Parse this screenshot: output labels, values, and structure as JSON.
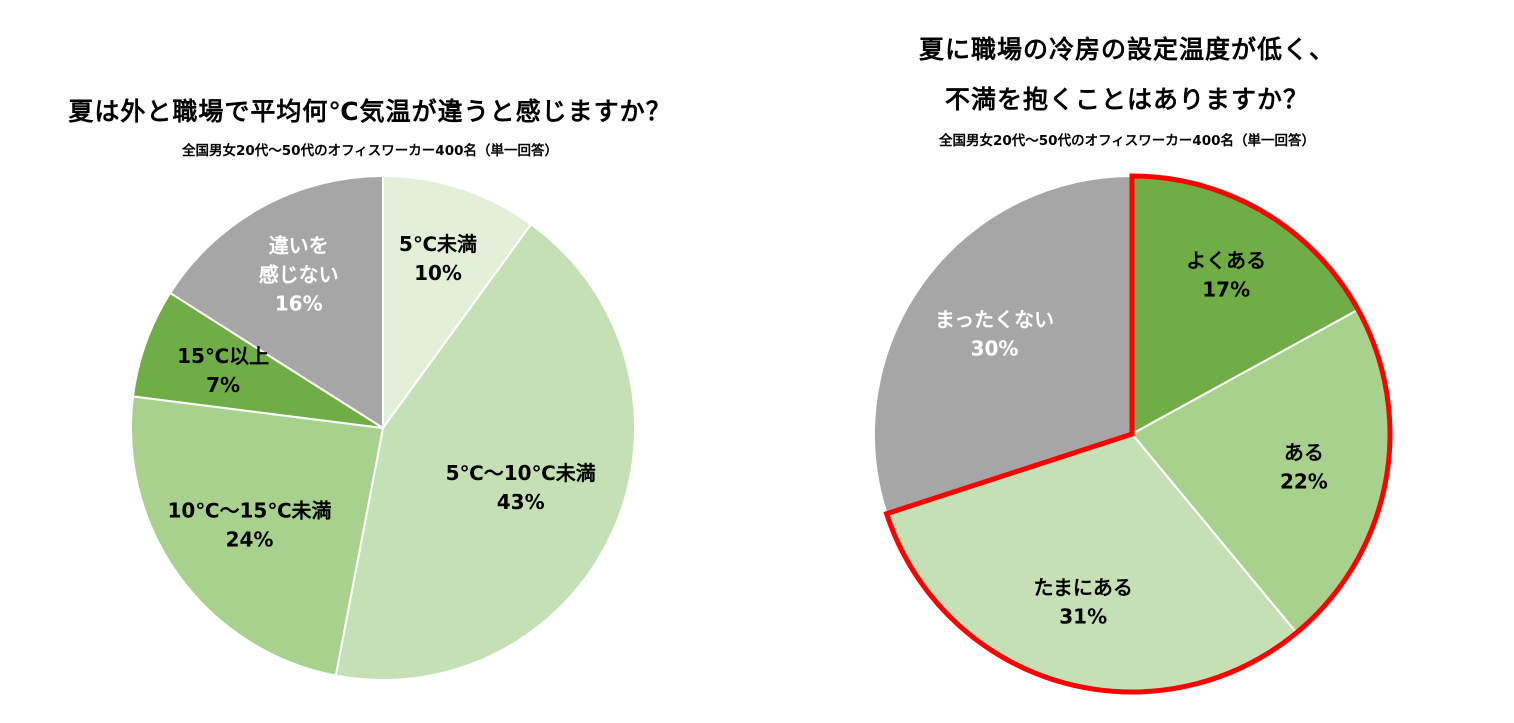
{
  "colors": {
    "dark_green": "#70AD47",
    "mid_green": "#A9D18E",
    "light_green": "#C5E0B4",
    "pale_green": "#E2F0D9",
    "gray": "#A6A6A6",
    "highlight_border": "#FF0000"
  },
  "chart_data": [
    {
      "type": "pie",
      "title": "夏は外と職場で平均何℃気温が違うと感じますか？",
      "subtitle": "全国男女20代～50代のオフィスワーカー400名（単一回答）",
      "start_angle_deg": 0,
      "direction": "clockwise",
      "slices": [
        {
          "label_lines": [
            "5℃未満"
          ],
          "value": 10,
          "value_label": "10%",
          "color": "#E2F0D9",
          "text_color": "#000000"
        },
        {
          "label_lines": [
            "5℃～10℃未満"
          ],
          "value": 43,
          "value_label": "43%",
          "color": "#C5E0B4",
          "text_color": "#000000"
        },
        {
          "label_lines": [
            "10℃～15℃未満"
          ],
          "value": 24,
          "value_label": "24%",
          "color": "#A9D18E",
          "text_color": "#000000"
        },
        {
          "label_lines": [
            "15℃以上"
          ],
          "value": 7,
          "value_label": "7%",
          "color": "#70AD47",
          "text_color": "#000000"
        },
        {
          "label_lines": [
            "違いを",
            "感じない"
          ],
          "value": 16,
          "value_label": "16%",
          "color": "#A6A6A6",
          "text_color": "#FFFFFF"
        }
      ]
    },
    {
      "type": "pie",
      "title_lines": [
        "夏に職場の冷房の設定温度が低く、",
        "不満を抱くことはありますか？"
      ],
      "subtitle": "全国男女20代～50代のオフィスワーカー400名（単一回答）",
      "start_angle_deg": 0,
      "direction": "clockwise",
      "highlighted_slices": [
        "よくある",
        "ある",
        "たまにある"
      ],
      "slices": [
        {
          "label_lines": [
            "よくある"
          ],
          "value": 17,
          "value_label": "17%",
          "color": "#70AD47",
          "text_color": "#000000"
        },
        {
          "label_lines": [
            "ある"
          ],
          "value": 22,
          "value_label": "22%",
          "color": "#A9D18E",
          "text_color": "#000000"
        },
        {
          "label_lines": [
            "たまにある"
          ],
          "value": 31,
          "value_label": "31%",
          "color": "#C5E0B4",
          "text_color": "#000000"
        },
        {
          "label_lines": [
            "まったくない"
          ],
          "value": 30,
          "value_label": "30%",
          "color": "#A6A6A6",
          "text_color": "#FFFFFF"
        }
      ]
    }
  ]
}
